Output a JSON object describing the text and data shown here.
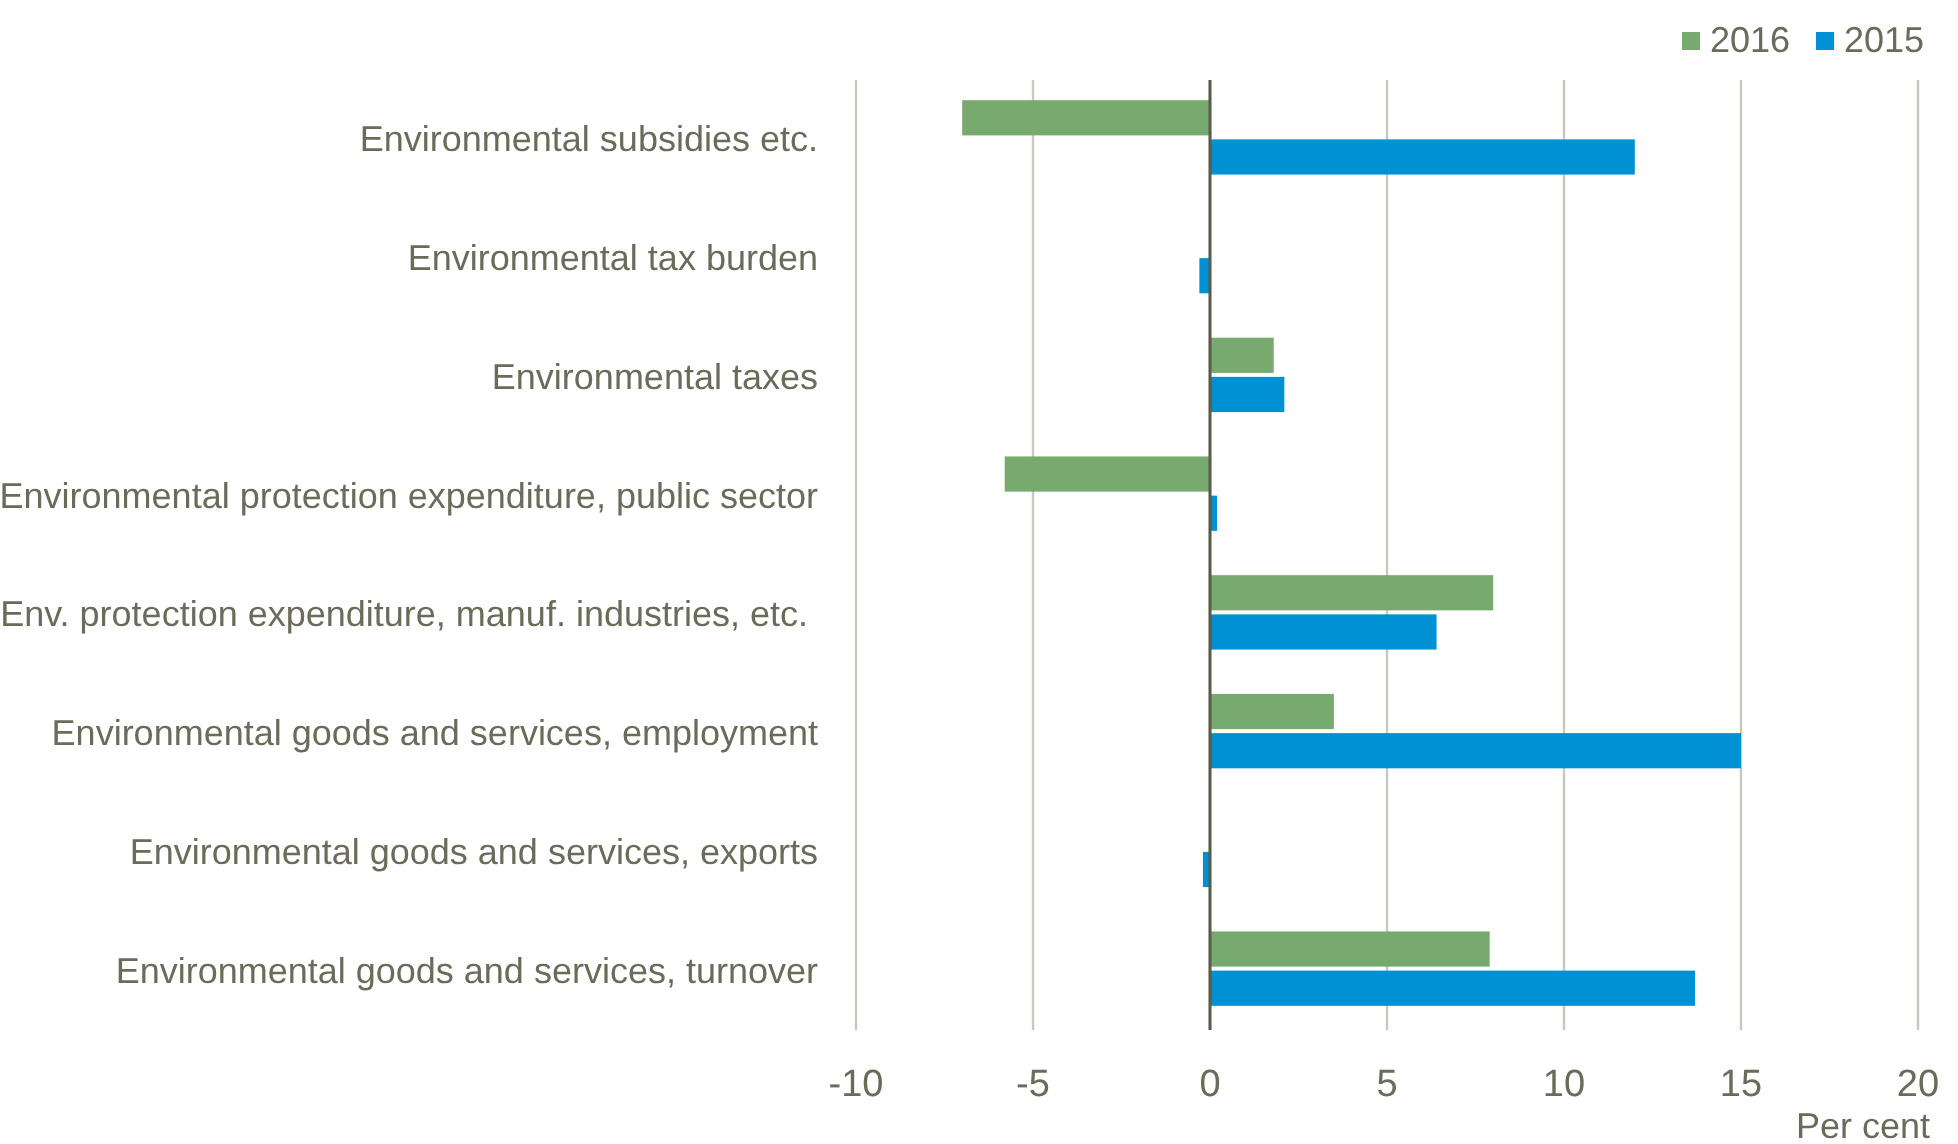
{
  "chart_data": {
    "type": "bar",
    "orientation": "horizontal",
    "xlabel": "Per cent",
    "categories": [
      "Environmental subsidies etc.",
      "Environmental tax burden",
      "Environmental taxes",
      "Environmental protection expenditure, public sector",
      "Env. protection expenditure, manuf. industries, etc. ",
      "Environmental goods and services, employment",
      "Environmental goods and services, exports",
      "Environmental goods and services, turnover"
    ],
    "series": [
      {
        "name": "2016",
        "color": "#78a96e",
        "values": [
          -7.0,
          null,
          1.8,
          -5.8,
          8.0,
          3.5,
          null,
          7.9
        ]
      },
      {
        "name": "2015",
        "color": "#0091d4",
        "values": [
          12.0,
          -0.3,
          2.1,
          0.2,
          6.4,
          15.0,
          -0.2,
          13.7
        ]
      }
    ],
    "xlim": [
      -10,
      20
    ],
    "xticks": [
      -10,
      -5,
      0,
      5,
      10,
      15,
      20
    ],
    "grid": "x",
    "legend": "top right"
  }
}
